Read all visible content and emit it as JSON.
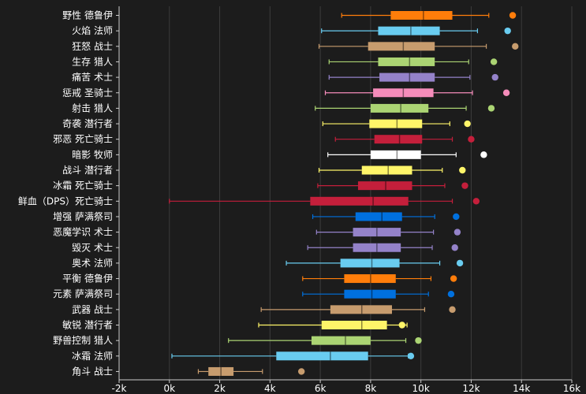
{
  "chart_data": {
    "type": "box",
    "orientation": "horizontal",
    "title": "",
    "xlabel": "",
    "ylabel": "",
    "xlim": [
      -2000,
      16000
    ],
    "x_ticks": [
      -2000,
      0,
      2000,
      4000,
      6000,
      8000,
      10000,
      12000,
      14000,
      16000
    ],
    "x_tick_labels": [
      "-2k",
      "0k",
      "2k",
      "4k",
      "6k",
      "8k",
      "10k",
      "12k",
      "14k",
      "16k"
    ],
    "grid": true,
    "series": [
      {
        "name": "野性 德鲁伊",
        "color": "#ff7d0a",
        "min": 6850,
        "q1": 8800,
        "median": 10100,
        "q3": 11250,
        "max": 12700,
        "outlier": 13650
      },
      {
        "name": "火焰 法师",
        "color": "#69ccf0",
        "min": 6050,
        "q1": 8300,
        "median": 9600,
        "q3": 10750,
        "max": 12250,
        "outlier": 13450
      },
      {
        "name": "狂怒 战士",
        "color": "#c79c6e",
        "min": 5950,
        "q1": 7900,
        "median": 9300,
        "q3": 10550,
        "max": 12600,
        "outlier": 13750
      },
      {
        "name": "生存 猎人",
        "color": "#abd473",
        "min": 6350,
        "q1": 8300,
        "median": 9550,
        "q3": 10550,
        "max": 11900,
        "outlier": 12900
      },
      {
        "name": "痛苦 术士",
        "color": "#9482c9",
        "min": 6350,
        "q1": 8350,
        "median": 9550,
        "q3": 10550,
        "max": 11950,
        "outlier": 12950
      },
      {
        "name": "惩戒 圣骑士",
        "color": "#f58cba",
        "min": 6200,
        "q1": 8100,
        "median": 9300,
        "q3": 10500,
        "max": 12050,
        "outlier": 13400
      },
      {
        "name": "射击 猎人",
        "color": "#abd473",
        "min": 5800,
        "q1": 8000,
        "median": 9200,
        "q3": 10300,
        "max": 11800,
        "outlier": 12800
      },
      {
        "name": "奇袭 潜行者",
        "color": "#fff569",
        "min": 6100,
        "q1": 7950,
        "median": 9050,
        "q3": 10050,
        "max": 11150,
        "outlier": 11850
      },
      {
        "name": "邪恶 死亡骑士",
        "color": "#c41f3b",
        "min": 6600,
        "q1": 8150,
        "median": 9150,
        "q3": 10050,
        "max": 11250,
        "outlier": 12000
      },
      {
        "name": "暗影 牧师",
        "color": "#ffffff",
        "min": 6300,
        "q1": 8000,
        "median": 9050,
        "q3": 10000,
        "max": 11400,
        "outlier": 12500
      },
      {
        "name": "战斗 潜行者",
        "color": "#fff569",
        "min": 5950,
        "q1": 7650,
        "median": 8700,
        "q3": 9650,
        "max": 10850,
        "outlier": 11650
      },
      {
        "name": "冰霜 死亡骑士",
        "color": "#c41f3b",
        "min": 5900,
        "q1": 7500,
        "median": 8600,
        "q3": 9650,
        "max": 10950,
        "outlier": 11750
      },
      {
        "name": "鲜血（DPS）死亡骑士",
        "color": "#c41f3b",
        "min": 0,
        "q1": 5600,
        "median": 8100,
        "q3": 9500,
        "max": 11250,
        "outlier": 12200
      },
      {
        "name": "增强 萨满祭司",
        "color": "#0070de",
        "min": 5700,
        "q1": 7400,
        "median": 8450,
        "q3": 9250,
        "max": 10550,
        "outlier": 11400
      },
      {
        "name": "恶魔学识 术士",
        "color": "#9482c9",
        "min": 5850,
        "q1": 7300,
        "median": 8250,
        "q3": 9200,
        "max": 10500,
        "outlier": 11450
      },
      {
        "name": "毁灭 术士",
        "color": "#9482c9",
        "min": 5500,
        "q1": 7300,
        "median": 8250,
        "q3": 9200,
        "max": 10450,
        "outlier": 11350
      },
      {
        "name": "奥术 法师",
        "color": "#69ccf0",
        "min": 4650,
        "q1": 6800,
        "median": 8050,
        "q3": 9150,
        "max": 10750,
        "outlier": 11550
      },
      {
        "name": "平衡 德鲁伊",
        "color": "#ff7d0a",
        "min": 5300,
        "q1": 6950,
        "median": 8000,
        "q3": 9000,
        "max": 10400,
        "outlier": 11300
      },
      {
        "name": "元素 萨满祭司",
        "color": "#0070de",
        "min": 5300,
        "q1": 6950,
        "median": 8050,
        "q3": 9000,
        "max": 10300,
        "outlier": 11200
      },
      {
        "name": "武器 战士",
        "color": "#c79c6e",
        "min": 3650,
        "q1": 6400,
        "median": 7650,
        "q3": 8850,
        "max": 10150,
        "outlier": 11250
      },
      {
        "name": "敏锐 潜行者",
        "color": "#fff569",
        "min": 3550,
        "q1": 6050,
        "median": 7650,
        "q3": 8650,
        "max": 9450,
        "outlier": 9250
      },
      {
        "name": "野兽控制 猎人",
        "color": "#abd473",
        "min": 2350,
        "q1": 5650,
        "median": 7000,
        "q3": 8000,
        "max": 9400,
        "outlier": 9900
      },
      {
        "name": "冰霜 法师",
        "color": "#69ccf0",
        "min": 100,
        "q1": 4250,
        "median": 6400,
        "q3": 7900,
        "max": 9500,
        "outlier": 9600
      },
      {
        "name": "角斗 战士",
        "color": "#c79c6e",
        "min": 1150,
        "q1": 1550,
        "median": 2050,
        "q3": 2550,
        "max": 3700,
        "outlier": 5250
      }
    ]
  }
}
